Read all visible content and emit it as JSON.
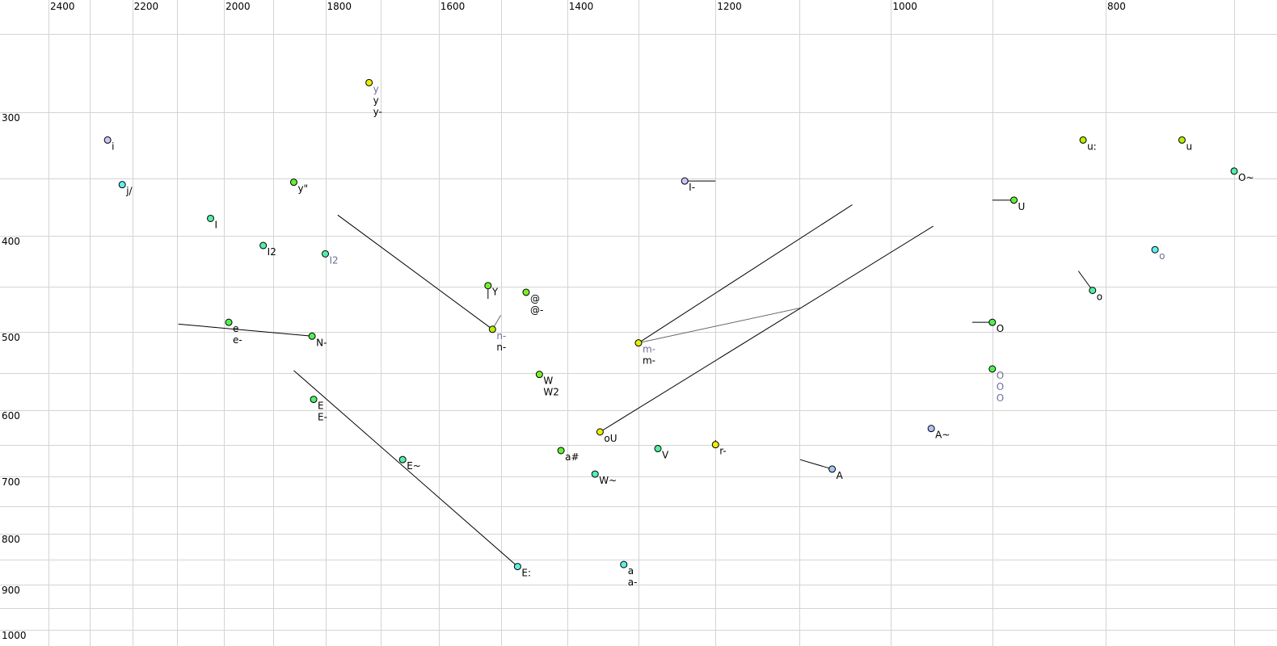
{
  "chart_data": {
    "type": "scatter",
    "title": "",
    "xlabel": "",
    "ylabel": "",
    "x_scale": "log",
    "y_scale": "log",
    "x_reversed": true,
    "x_axis_position": "top",
    "xlim": [
      2400,
      700
    ],
    "ylim": [
      250,
      1000
    ],
    "grid": true,
    "x_gridlines": [
      2400,
      2300,
      2200,
      2100,
      2000,
      1900,
      1800,
      1700,
      1600,
      1500,
      1400,
      1300,
      1200,
      1100,
      1000,
      900,
      800,
      700
    ],
    "y_gridlines": [
      250,
      300,
      350,
      400,
      450,
      500,
      550,
      600,
      650,
      700,
      750,
      800,
      850,
      900,
      950,
      1000
    ],
    "x_ticks": [
      "2400",
      "2200",
      "2000",
      "1800",
      "1600",
      "1400",
      "1200",
      "1000",
      "800"
    ],
    "y_ticks": [
      "300",
      "400",
      "500",
      "600",
      "700",
      "800",
      "900",
      "1000"
    ],
    "colors": {
      "label_primary": "#000000",
      "label_secondary": "#6e6e9a",
      "line": "#000000",
      "line_secondary": "#666666"
    },
    "points": [
      {
        "x": 2257,
        "y": 320,
        "color": "#c8c8f8",
        "labels": [
          {
            "text": "i",
            "style": "primary"
          }
        ]
      },
      {
        "x": 2223,
        "y": 355,
        "color": "#60eef0",
        "labels": [
          {
            "text": "j/",
            "style": "primary"
          }
        ]
      },
      {
        "x": 2028,
        "y": 384,
        "color": "#50f0a8",
        "labels": [
          {
            "text": "I",
            "style": "primary"
          }
        ]
      },
      {
        "x": 1920,
        "y": 409,
        "color": "#50f0a8",
        "labels": [
          {
            "text": "I2",
            "style": "primary"
          }
        ]
      },
      {
        "x": 1800,
        "y": 417,
        "color": "#50f0a8",
        "labels": [
          {
            "text": "I2",
            "style": "secondary"
          }
        ]
      },
      {
        "x": 1860,
        "y": 353,
        "color": "#64f032",
        "labels": [
          {
            "text": "y\"",
            "style": "primary"
          }
        ]
      },
      {
        "x": 1720,
        "y": 280,
        "color": "#e6f000",
        "labels": [
          {
            "text": "y",
            "style": "secondary"
          },
          {
            "text": "y",
            "style": "primary"
          },
          {
            "text": "y-",
            "style": "primary"
          }
        ]
      },
      {
        "x": 1990,
        "y": 489,
        "color": "#50f050",
        "labels": [
          {
            "text": "e",
            "style": "primary"
          },
          {
            "text": "e-",
            "style": "primary"
          }
        ]
      },
      {
        "x": 1825,
        "y": 505,
        "color": "#50f050",
        "labels": [
          {
            "text": "N-",
            "style": "primary"
          }
        ]
      },
      {
        "x": 1520,
        "y": 449,
        "color": "#78f028",
        "labels": [
          {
            "text": "Y",
            "style": "primary"
          }
        ]
      },
      {
        "x": 1461,
        "y": 456,
        "color": "#78f028",
        "labels": [
          {
            "text": "@",
            "style": "primary"
          },
          {
            "text": "@-",
            "style": "primary"
          }
        ]
      },
      {
        "x": 1513,
        "y": 497,
        "color": "#b4f000",
        "labels": [
          {
            "text": "n-",
            "style": "secondary"
          },
          {
            "text": "n-",
            "style": "primary"
          }
        ]
      },
      {
        "x": 1441,
        "y": 552,
        "color": "#78f028",
        "labels": [
          {
            "text": "W",
            "style": "primary"
          },
          {
            "text": "W2",
            "style": "primary"
          }
        ]
      },
      {
        "x": 1822,
        "y": 585,
        "color": "#50f070",
        "labels": [
          {
            "text": "E",
            "style": "primary"
          },
          {
            "text": "E-",
            "style": "primary"
          }
        ]
      },
      {
        "x": 1661,
        "y": 673,
        "color": "#50f0a8",
        "labels": [
          {
            "text": "E~",
            "style": "primary"
          }
        ]
      },
      {
        "x": 1474,
        "y": 863,
        "color": "#60eee0",
        "labels": [
          {
            "text": "E:",
            "style": "primary"
          }
        ]
      },
      {
        "x": 1300,
        "y": 513,
        "color": "#e6f000",
        "labels": [
          {
            "text": "m-",
            "style": "secondary"
          },
          {
            "text": "m-",
            "style": "primary"
          }
        ]
      },
      {
        "x": 1239,
        "y": 352,
        "color": "#c8c8f8",
        "labels": [
          {
            "text": "I-",
            "style": "primary"
          }
        ]
      },
      {
        "x": 1353,
        "y": 631,
        "color": "#e6f000",
        "labels": [
          {
            "text": "oU",
            "style": "primary"
          }
        ]
      },
      {
        "x": 1409,
        "y": 659,
        "color": "#64f032",
        "labels": [
          {
            "text": "a#",
            "style": "primary"
          }
        ]
      },
      {
        "x": 1360,
        "y": 696,
        "color": "#50f0b8",
        "labels": [
          {
            "text": "W~",
            "style": "primary"
          }
        ]
      },
      {
        "x": 1274,
        "y": 656,
        "color": "#50f0a0",
        "labels": [
          {
            "text": "V",
            "style": "primary"
          }
        ]
      },
      {
        "x": 1200,
        "y": 650,
        "color": "#f0f000",
        "labels": [
          {
            "text": "r-",
            "style": "primary"
          }
        ]
      },
      {
        "x": 1320,
        "y": 859,
        "color": "#60eee0",
        "labels": [
          {
            "text": "a",
            "style": "primary"
          },
          {
            "text": "a-",
            "style": "primary"
          }
        ]
      },
      {
        "x": 1063,
        "y": 688,
        "color": "#a0c8f0",
        "labels": [
          {
            "text": "A",
            "style": "primary"
          }
        ]
      },
      {
        "x": 959,
        "y": 626,
        "color": "#b0c0fa",
        "labels": [
          {
            "text": "A~",
            "style": "primary"
          }
        ]
      },
      {
        "x": 880,
        "y": 368,
        "color": "#64f032",
        "labels": [
          {
            "text": "U",
            "style": "primary"
          }
        ]
      },
      {
        "x": 900,
        "y": 489,
        "color": "#50f050",
        "labels": [
          {
            "text": "O",
            "style": "primary"
          }
        ]
      },
      {
        "x": 900,
        "y": 545,
        "color": "#50f050",
        "labels": [
          {
            "text": "O",
            "style": "secondary"
          },
          {
            "text": "O",
            "style": "secondary"
          },
          {
            "text": "O",
            "style": "secondary"
          }
        ]
      },
      {
        "x": 819,
        "y": 320,
        "color": "#b4f000",
        "labels": [
          {
            "text": "u:",
            "style": "primary"
          }
        ]
      },
      {
        "x": 739,
        "y": 320,
        "color": "#b4f000",
        "labels": [
          {
            "text": "u",
            "style": "primary"
          }
        ]
      },
      {
        "x": 700,
        "y": 344,
        "color": "#50f0a8",
        "labels": [
          {
            "text": "O~",
            "style": "primary"
          }
        ]
      },
      {
        "x": 760,
        "y": 413,
        "color": "#60f0f0",
        "labels": [
          {
            "text": "o",
            "style": "secondary"
          }
        ]
      },
      {
        "x": 811,
        "y": 454,
        "color": "#50f0a0",
        "labels": [
          {
            "text": "o",
            "style": "primary"
          }
        ]
      }
    ],
    "segments": [
      {
        "from": [
          1777,
          381
        ],
        "to": [
          1513,
          497
        ],
        "style": "primary"
      },
      {
        "from": [
          1513,
          497
        ],
        "to": [
          1500,
          481
        ],
        "style": "secondary"
      },
      {
        "from": [
          2097,
          491
        ],
        "to": [
          1825,
          505
        ],
        "style": "primary"
      },
      {
        "from": [
          1860,
          547
        ],
        "to": [
          1474,
          863
        ],
        "style": "primary"
      },
      {
        "from": [
          1300,
          513
        ],
        "to": [
          1041,
          372
        ],
        "style": "primary"
      },
      {
        "from": [
          1300,
          513
        ],
        "to": [
          1099,
          473
        ],
        "style": "secondary"
      },
      {
        "from": [
          1353,
          631
        ],
        "to": [
          957,
          391
        ],
        "style": "primary"
      },
      {
        "from": [
          1239,
          352
        ],
        "to": [
          1200,
          352
        ],
        "style": "primary"
      },
      {
        "from": [
          900,
          368
        ],
        "to": [
          880,
          368
        ],
        "style": "primary"
      },
      {
        "from": [
          919,
          489
        ],
        "to": [
          900,
          489
        ],
        "style": "primary"
      },
      {
        "from": [
          823,
          434
        ],
        "to": [
          811,
          454
        ],
        "style": "primary"
      },
      {
        "from": [
          1099,
          673
        ],
        "to": [
          1063,
          688
        ],
        "style": "primary"
      },
      {
        "from": [
          1520,
          449
        ],
        "to": [
          1520,
          463
        ],
        "style": "primary"
      },
      {
        "from": [
          1200,
          643
        ],
        "to": [
          1200,
          650
        ],
        "style": "primary"
      }
    ]
  }
}
